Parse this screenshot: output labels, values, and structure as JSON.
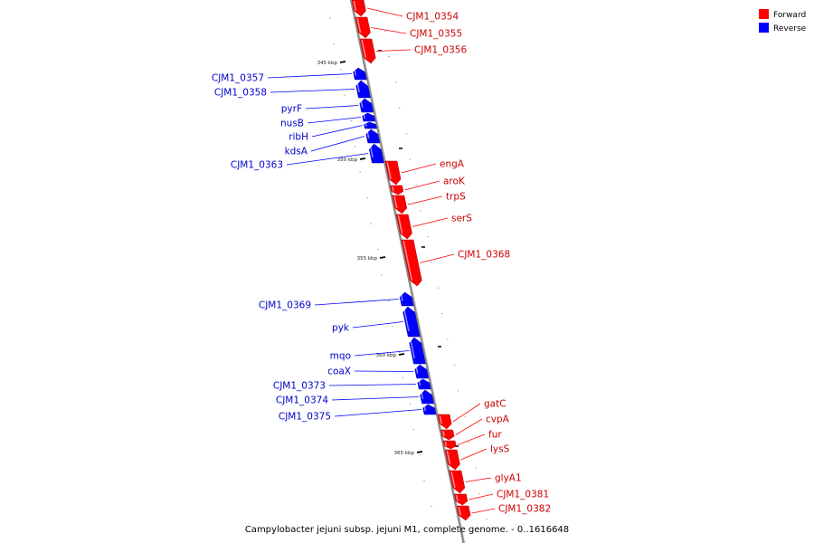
{
  "caption": "Campylobacter jejuni subsp. jejuni M1, complete genome. - 0..1616648",
  "legend": [
    {
      "label": "Forward",
      "color": "#ff0000"
    },
    {
      "label": "Reverse",
      "color": "#0000ff"
    }
  ],
  "colors": {
    "forward": "#ff0000",
    "reverse": "#0000ff",
    "backbone": "#888888",
    "forward_label": "#cc0000",
    "reverse_label": "#0000cc"
  },
  "scale_ticks": [
    "345 kbp",
    "350 kbp",
    "355 kbp",
    "360 kbp",
    "365 kbp"
  ],
  "forward_genes": [
    "CJM1_0354",
    "CJM1_0355",
    "CJM1_0356",
    "engA",
    "aroK",
    "trpS",
    "serS",
    "CJM1_0368",
    "gatC",
    "cvpA",
    "fur",
    "lysS",
    "glyA1",
    "CJM1_0381",
    "CJM1_0382"
  ],
  "reverse_genes": [
    "CJM1_0357",
    "CJM1_0358",
    "pyrF",
    "nusB",
    "ribH",
    "kdsA",
    "CJM1_0363",
    "CJM1_0369",
    "pyk",
    "mqo",
    "coaX",
    "CJM1_0373",
    "CJM1_0374",
    "CJM1_0375"
  ]
}
